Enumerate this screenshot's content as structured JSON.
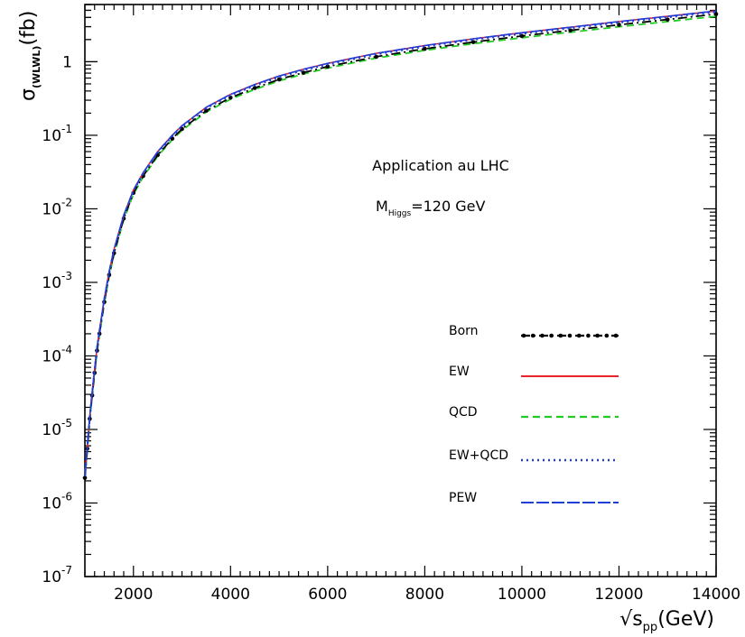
{
  "chart_data": {
    "type": "line",
    "title": "",
    "xlabel": "√s_pp(GeV)",
    "ylabel": "σ_(WLWL)(fb)",
    "x_scale": "linear",
    "y_scale": "log",
    "xlim": [
      1000,
      14000
    ],
    "ylim": [
      1e-07,
      6
    ],
    "x_ticks": [
      2000,
      4000,
      6000,
      8000,
      10000,
      12000,
      14000
    ],
    "x_tick_labels": [
      "2000",
      "4000",
      "6000",
      "8000",
      "10000",
      "12000",
      "14000"
    ],
    "y_ticks": [
      1e-07,
      1e-06,
      1e-05,
      0.0001,
      0.001,
      0.01,
      0.1,
      1
    ],
    "y_tick_labels": [
      {
        "base": "10",
        "exp": "-7"
      },
      {
        "base": "10",
        "exp": "-6"
      },
      {
        "base": "10",
        "exp": "-5"
      },
      {
        "base": "10",
        "exp": "-4"
      },
      {
        "base": "10",
        "exp": "-3"
      },
      {
        "base": "10",
        "exp": "-2"
      },
      {
        "base": "10",
        "exp": "-1"
      },
      {
        "base": "1",
        "exp": ""
      }
    ],
    "x": [
      1000,
      1050,
      1100,
      1150,
      1200,
      1250,
      1300,
      1400,
      1500,
      1600,
      1800,
      2000,
      2200,
      2500,
      2800,
      3000,
      3500,
      4000,
      4500,
      5000,
      5500,
      6000,
      7000,
      8000,
      9000,
      10000,
      11000,
      12000,
      13000,
      14000
    ],
    "series": [
      {
        "name": "PEW",
        "style": "long-dash",
        "color": "#1f3fd8",
        "values": [
          2.4e-06,
          6e-06,
          1.5e-05,
          3.2e-05,
          6.5e-05,
          0.00013,
          0.00022,
          0.0006,
          0.0014,
          0.0028,
          0.0082,
          0.018,
          0.031,
          0.06,
          0.1,
          0.135,
          0.24,
          0.36,
          0.49,
          0.64,
          0.79,
          0.95,
          1.3,
          1.66,
          2.05,
          2.48,
          2.95,
          3.52,
          4.15,
          4.9
        ]
      },
      {
        "name": "EW",
        "style": "solid",
        "color": "#e8232a",
        "values": [
          2.4e-06,
          6e-06,
          1.5e-05,
          3.2e-05,
          6.5e-05,
          0.00013,
          0.00022,
          0.0006,
          0.0014,
          0.0028,
          0.0082,
          0.018,
          0.031,
          0.06,
          0.1,
          0.135,
          0.24,
          0.36,
          0.49,
          0.64,
          0.79,
          0.95,
          1.3,
          1.66,
          2.05,
          2.48,
          2.95,
          3.52,
          4.15,
          4.9
        ]
      },
      {
        "name": "Born",
        "style": "dash-dot-markers",
        "color": "#000000",
        "values": [
          2.2e-06,
          5.5e-06,
          1.4e-05,
          2.9e-05,
          5.9e-05,
          0.000118,
          0.0002,
          0.00054,
          0.00126,
          0.0025,
          0.0074,
          0.0165,
          0.028,
          0.054,
          0.09,
          0.122,
          0.216,
          0.325,
          0.44,
          0.575,
          0.71,
          0.86,
          1.17,
          1.5,
          1.85,
          2.24,
          2.67,
          3.18,
          3.75,
          4.45
        ]
      },
      {
        "name": "QCD",
        "style": "dashed",
        "color": "#22cc22",
        "values": [
          2.1e-06,
          5.2e-06,
          1.3e-05,
          2.8e-05,
          5.6e-05,
          0.000112,
          0.00019,
          0.00052,
          0.0012,
          0.0024,
          0.0071,
          0.0158,
          0.027,
          0.052,
          0.087,
          0.117,
          0.207,
          0.31,
          0.42,
          0.55,
          0.68,
          0.82,
          1.12,
          1.43,
          1.76,
          2.12,
          2.52,
          2.99,
          3.52,
          4.15
        ]
      },
      {
        "name": "EW+QCD",
        "style": "dotted",
        "color": "#1f3fd8",
        "values": [
          2.3e-06,
          5.8e-06,
          1.45e-05,
          3.1e-05,
          6.3e-05,
          0.000126,
          0.000214,
          0.00058,
          0.00136,
          0.00272,
          0.008,
          0.0176,
          0.0302,
          0.058,
          0.097,
          0.131,
          0.233,
          0.35,
          0.475,
          0.62,
          0.765,
          0.92,
          1.26,
          1.61,
          1.99,
          2.4,
          2.86,
          3.41,
          4.02,
          4.75
        ]
      }
    ],
    "legend": {
      "placement": "lower-right",
      "entries": [
        "Born",
        "EW",
        "QCD",
        "EW+QCD",
        "PEW"
      ]
    },
    "annotations": {
      "line1": "Application au LHC",
      "line2_main": "M",
      "line2_sub": "Higgs",
      "line2_value": "=120 GeV"
    },
    "grid": false
  },
  "axis_labels": {
    "y_sigma": "σ",
    "y_sub": "(WLWL)",
    "y_unit": "(fb)",
    "x_sqrt": "√s",
    "x_sub": "pp",
    "x_unit": "(GeV)"
  }
}
